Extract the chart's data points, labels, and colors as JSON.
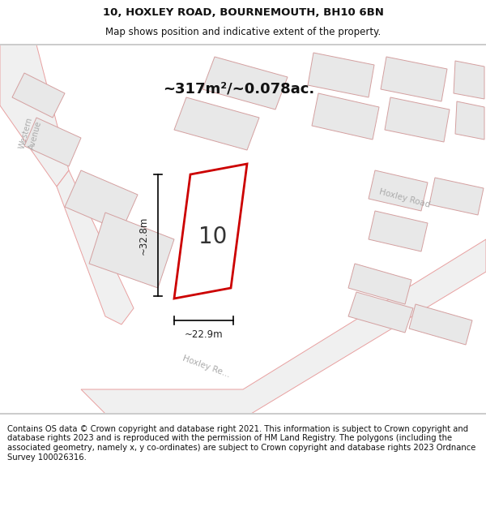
{
  "title_line1": "10, HOXLEY ROAD, BOURNEMOUTH, BH10 6BN",
  "title_line2": "Map shows position and indicative extent of the property.",
  "area_text": "~317m²/~0.078ac.",
  "dim_width": "~22.9m",
  "dim_height": "~32.8m",
  "number_label": "10",
  "footer_text": "Contains OS data © Crown copyright and database right 2021. This information is subject to Crown copyright and database rights 2023 and is reproduced with the permission of HM Land Registry. The polygons (including the associated geometry, namely x, y co-ordinates) are subject to Crown copyright and database rights 2023 Ordnance Survey 100026316.",
  "map_bg": "#f7f7f7",
  "plot_fill": "#ffffff",
  "plot_edge": "#cc0000",
  "bldg_fill": "#e8e8e8",
  "bldg_edge": "#d4a0a0",
  "road_edge": "#e8a0a0",
  "road_fill": "#f0f0f0",
  "text_color": "#111111",
  "dim_color": "#222222",
  "road_label_color": "#aaaaaa",
  "title_fontsize": 9.5,
  "subtitle_fontsize": 8.5,
  "area_fontsize": 13,
  "footer_fontsize": 7.2,
  "number_fontsize": 20
}
